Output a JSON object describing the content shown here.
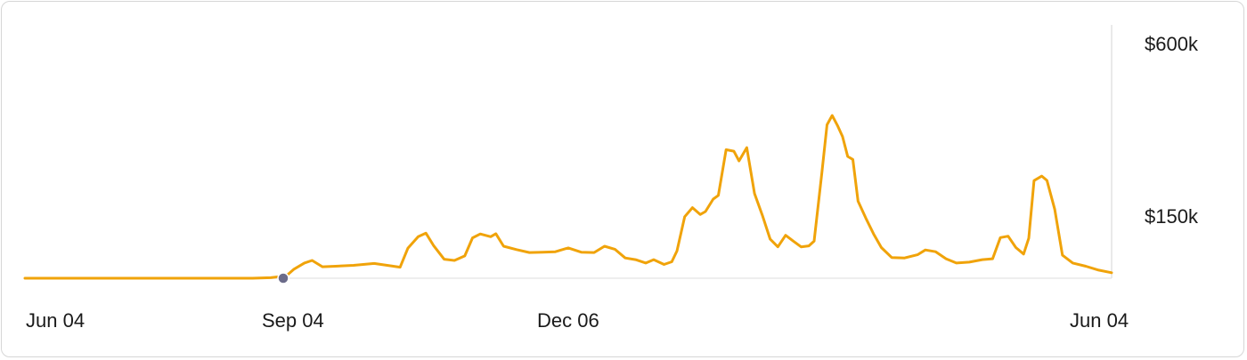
{
  "chart_data": {
    "type": "line",
    "title": "",
    "xlabel": "",
    "ylabel": "",
    "x_tick_labels": [
      "Jun 04",
      "Sep 04",
      "Dec 06",
      "Jun 04"
    ],
    "y_tick_labels": [
      "$600k",
      "$150k"
    ],
    "y_scale": "log",
    "ylim": [
      10000,
      800000
    ],
    "grid": false,
    "colors": {
      "line": "#f0a30a",
      "marker": "#6b6b8a",
      "axis": "#e3e3e3"
    },
    "highlight_point": {
      "x": "Sep 04",
      "y": 10000
    },
    "series": [
      {
        "values": [
          [
            0,
            10000
          ],
          [
            10,
            10000
          ],
          [
            20,
            10000
          ],
          [
            30,
            10000
          ],
          [
            40,
            10000
          ],
          [
            50,
            10000
          ],
          [
            60,
            10000
          ],
          [
            70,
            10000
          ],
          [
            80,
            10000
          ],
          [
            88,
            10000
          ],
          [
            95,
            10100
          ],
          [
            101,
            10400
          ],
          [
            104,
            11700
          ],
          [
            108,
            13000
          ],
          [
            111,
            13600
          ],
          [
            115,
            12200
          ],
          [
            120,
            12300
          ],
          [
            127,
            12500
          ],
          [
            135,
            12900
          ],
          [
            140,
            12500
          ],
          [
            145,
            12100
          ],
          [
            148,
            16800
          ],
          [
            152,
            20500
          ],
          [
            155,
            21800
          ],
          [
            158,
            17500
          ],
          [
            162,
            13900
          ],
          [
            166,
            13600
          ],
          [
            170,
            14700
          ],
          [
            173,
            20100
          ],
          [
            176,
            21500
          ],
          [
            180,
            20500
          ],
          [
            182,
            21600
          ],
          [
            185,
            17400
          ],
          [
            190,
            16400
          ],
          [
            195,
            15600
          ],
          [
            200,
            15700
          ],
          [
            205,
            15800
          ],
          [
            210,
            16900
          ],
          [
            215,
            15700
          ],
          [
            220,
            15600
          ],
          [
            224,
            17400
          ],
          [
            228,
            16500
          ],
          [
            232,
            14200
          ],
          [
            236,
            13800
          ],
          [
            240,
            13000
          ],
          [
            243,
            13800
          ],
          [
            247,
            12700
          ],
          [
            250,
            13300
          ],
          [
            252,
            16000
          ],
          [
            255,
            29000
          ],
          [
            258,
            33900
          ],
          [
            261,
            30100
          ],
          [
            263,
            31700
          ],
          [
            266,
            39300
          ],
          [
            268,
            41900
          ],
          [
            271,
            92400
          ],
          [
            274,
            90000
          ],
          [
            276,
            76100
          ],
          [
            279,
            95700
          ],
          [
            282,
            43300
          ],
          [
            285,
            29700
          ],
          [
            288,
            19700
          ],
          [
            291,
            17200
          ],
          [
            294,
            21000
          ],
          [
            297,
            19000
          ],
          [
            300,
            17200
          ],
          [
            303,
            17500
          ],
          [
            305,
            19000
          ],
          [
            308,
            61900
          ],
          [
            310,
            142000
          ],
          [
            312,
            167000
          ],
          [
            314,
            141000
          ],
          [
            316,
            116000
          ],
          [
            318,
            82200
          ],
          [
            320,
            78000
          ],
          [
            322,
            38000
          ],
          [
            325,
            28300
          ],
          [
            328,
            21500
          ],
          [
            331,
            17000
          ],
          [
            335,
            14300
          ],
          [
            340,
            14200
          ],
          [
            345,
            15000
          ],
          [
            348,
            16300
          ],
          [
            352,
            15800
          ],
          [
            356,
            14000
          ],
          [
            360,
            13000
          ],
          [
            365,
            13200
          ],
          [
            370,
            13800
          ],
          [
            374,
            14000
          ],
          [
            377,
            20200
          ],
          [
            380,
            20700
          ],
          [
            383,
            17000
          ],
          [
            386,
            15200
          ],
          [
            388,
            20000
          ],
          [
            390,
            54100
          ],
          [
            393,
            58500
          ],
          [
            395,
            54300
          ],
          [
            398,
            33000
          ],
          [
            401,
            14900
          ],
          [
            405,
            13000
          ],
          [
            410,
            12300
          ],
          [
            415,
            11500
          ],
          [
            420,
            11000
          ]
        ]
      }
    ]
  }
}
